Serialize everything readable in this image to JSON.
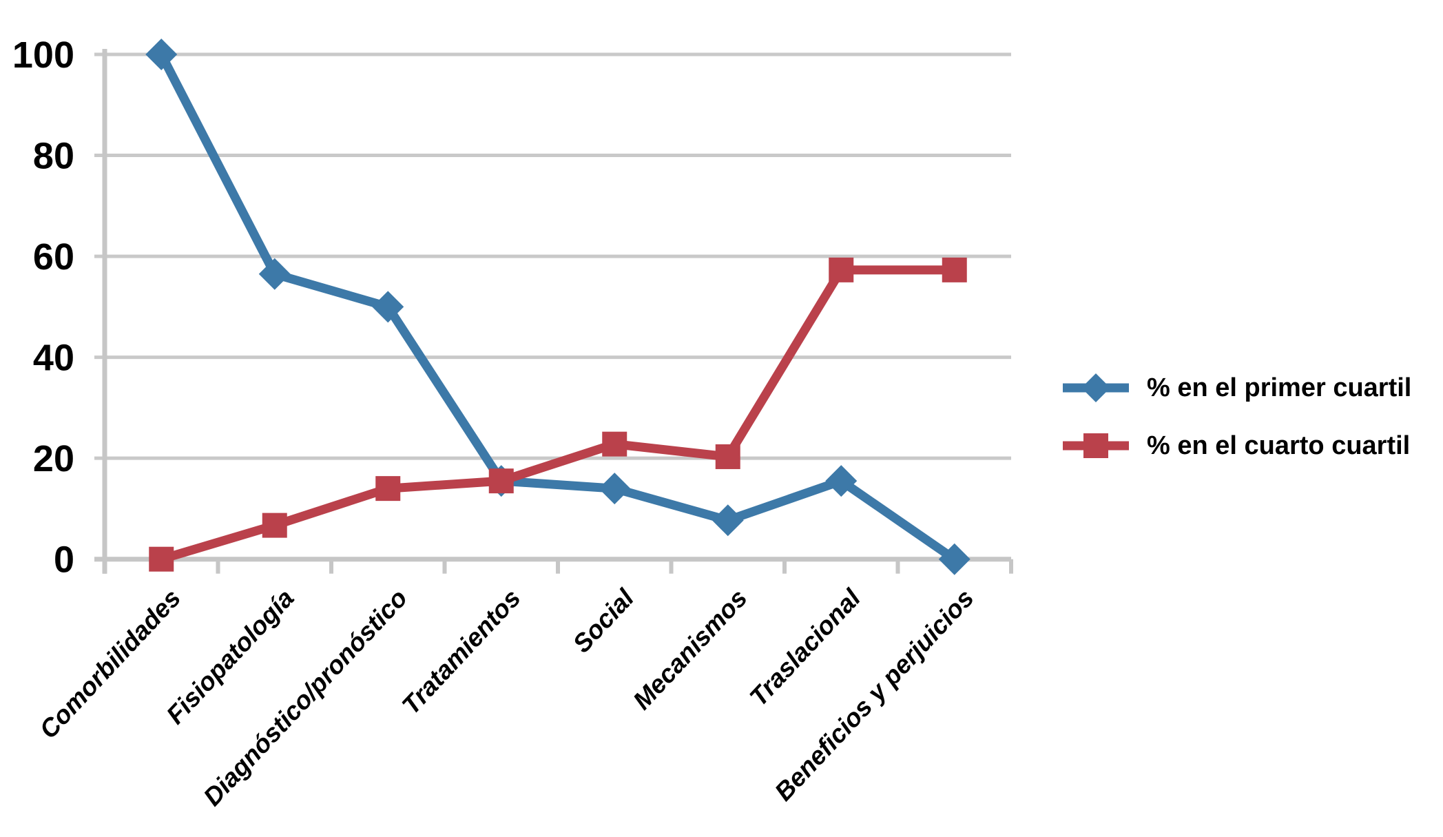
{
  "chart_data": {
    "type": "line",
    "categories": [
      "Comorbilidades",
      "Fisiopatología",
      "Diagnóstico/pronóstico",
      "Tratamientos",
      "Social",
      "Mecanismos",
      "Traslacional",
      "Beneficios y perjuicios"
    ],
    "series": [
      {
        "name": "% en el primer cuartil",
        "color": "#3D79A8",
        "marker": "diamond",
        "values": [
          100,
          56.5,
          50,
          15.5,
          14,
          7.7,
          15.5,
          0
        ]
      },
      {
        "name": "% en el cuarto cuartil",
        "color": "#BA414B",
        "marker": "square",
        "values": [
          0,
          6.7,
          14,
          15.5,
          22.8,
          20.3,
          57.3,
          57.3
        ]
      }
    ],
    "y_ticks": [
      0,
      20,
      40,
      60,
      80,
      100
    ],
    "ylim": [
      0,
      100
    ],
    "xlabel": "",
    "ylabel": "",
    "title": "",
    "grid": true,
    "legend_position": "right",
    "gridline_color": "#C9C9C9",
    "axis_color": "#C6C6C6",
    "text_color": "#000000"
  }
}
